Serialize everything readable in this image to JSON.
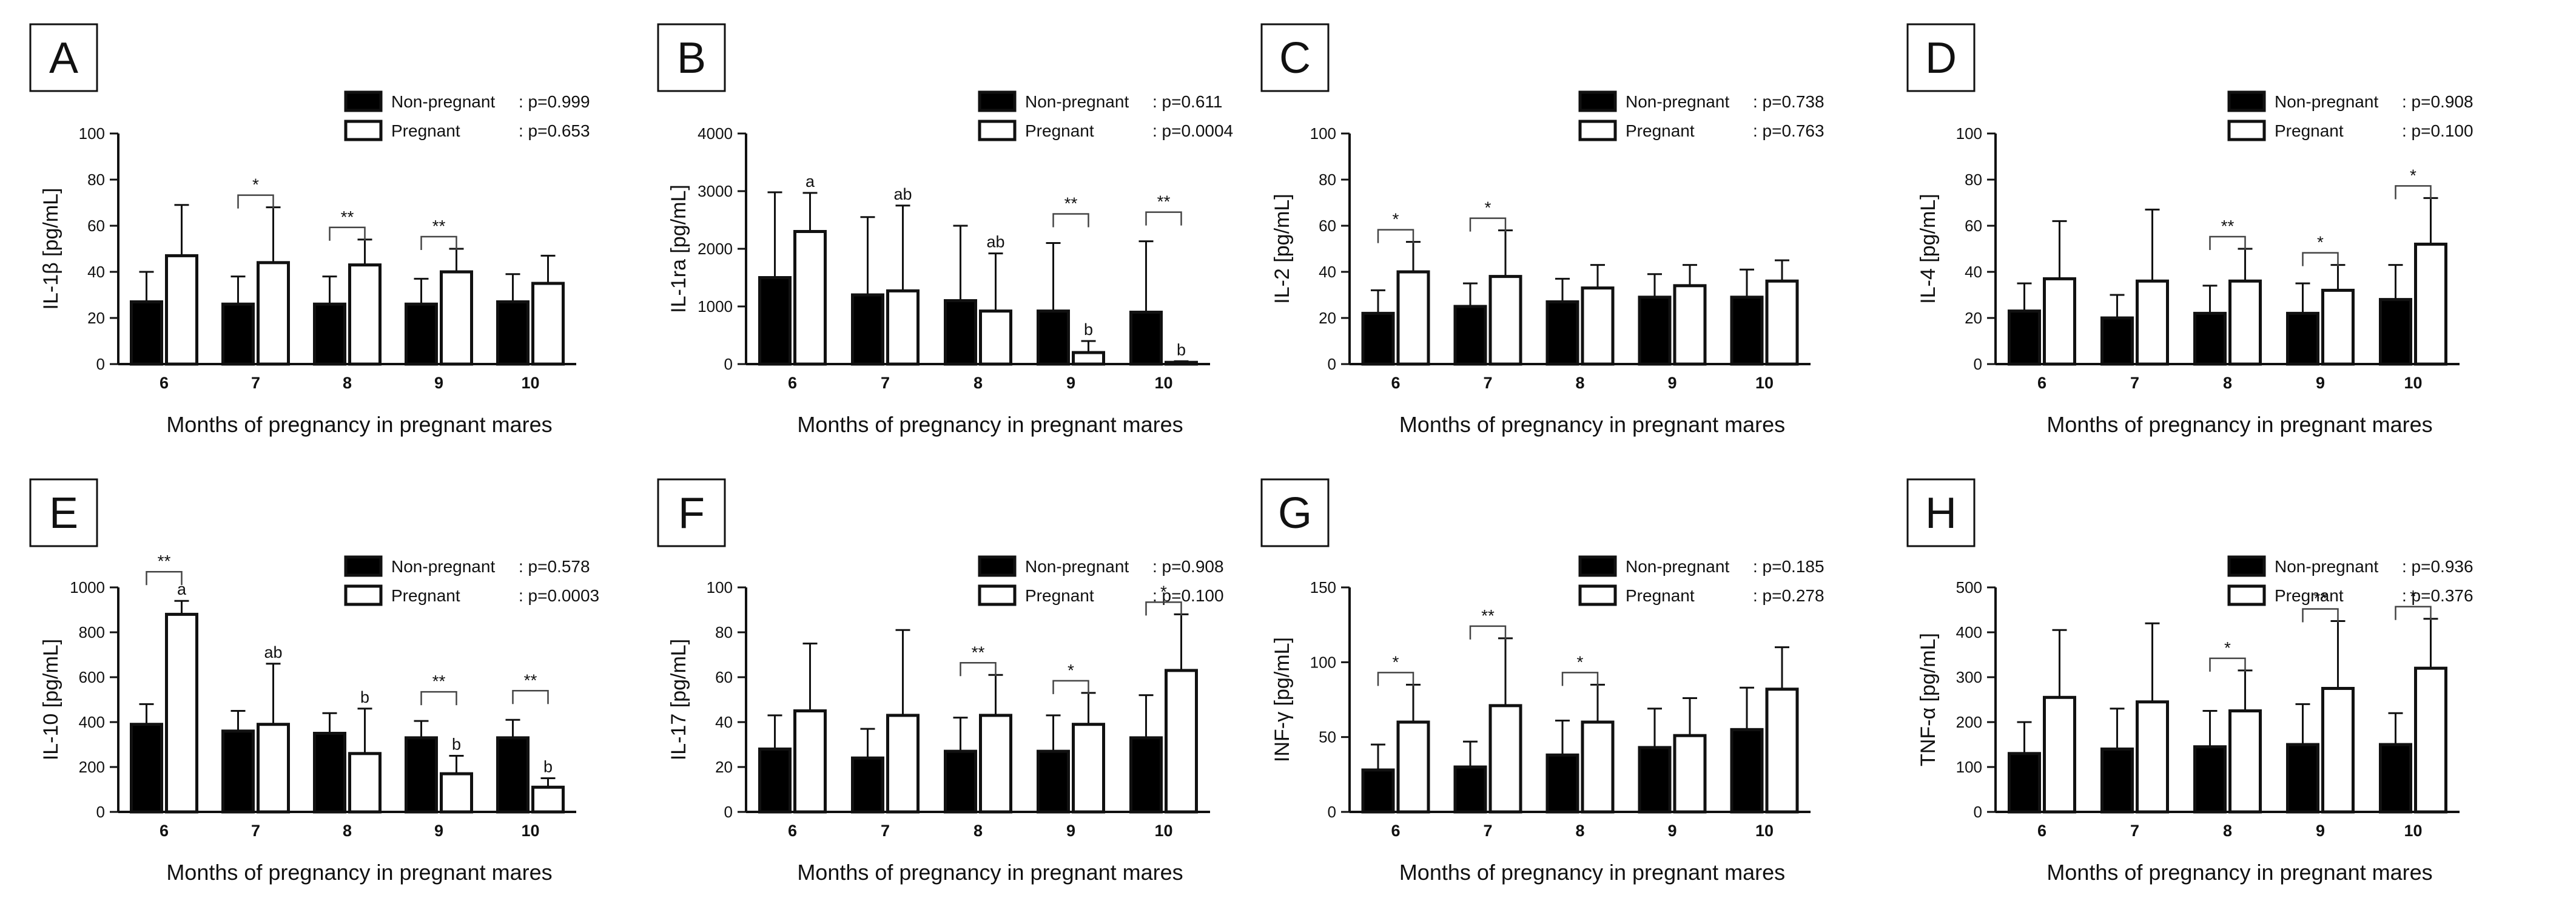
{
  "chart_data": [
    {
      "type": "bar",
      "panel": "A",
      "ylabel": "IL-1β [pg/mL]",
      "xlabel": "Months of pregnancy in pregnant mares",
      "categories": [
        "6",
        "7",
        "8",
        "9",
        "10"
      ],
      "ylim": [
        0,
        100
      ],
      "yticks": [
        "0",
        "20",
        "40",
        "60",
        "80",
        "100"
      ],
      "legend": [
        {
          "name": "Non-pregnant",
          "p": ": p=0.999"
        },
        {
          "name": "Pregnant",
          "p": ": p=0.653"
        }
      ],
      "series": [
        {
          "name": "Non-pregnant",
          "color": "#000000",
          "values": [
            27,
            26,
            26,
            26,
            27
          ],
          "err": [
            13,
            12,
            12,
            11,
            12
          ]
        },
        {
          "name": "Pregnant",
          "color": "#ffffff",
          "values": [
            47,
            44,
            43,
            40,
            35
          ],
          "err": [
            22,
            24,
            11,
            10,
            12
          ]
        }
      ],
      "letters": {
        "nonpregnant": [
          "",
          "",
          "",
          "",
          ""
        ],
        "pregnant": [
          "",
          "",
          "",
          "",
          ""
        ]
      },
      "significance": [
        "",
        "*",
        "**",
        "**",
        ""
      ]
    },
    {
      "type": "bar",
      "panel": "B",
      "ylabel": "IL-1ra [pg/mL]",
      "xlabel": "Months of pregnancy in pregnant mares",
      "categories": [
        "6",
        "7",
        "8",
        "9",
        "10"
      ],
      "ylim": [
        0,
        4000
      ],
      "yticks": [
        "0",
        "1000",
        "2000",
        "3000",
        "4000"
      ],
      "legend": [
        {
          "name": "Non-pregnant",
          "p": ": p=0.611"
        },
        {
          "name": "Pregnant",
          "p": ": p=0.0004"
        }
      ],
      "series": [
        {
          "name": "Non-pregnant",
          "color": "#000000",
          "values": [
            1500,
            1200,
            1100,
            920,
            900
          ],
          "err": [
            1480,
            1350,
            1300,
            1180,
            1230
          ]
        },
        {
          "name": "Pregnant",
          "color": "#ffffff",
          "values": [
            2300,
            1270,
            920,
            200,
            30
          ],
          "err": [
            670,
            1480,
            1000,
            200,
            20
          ]
        }
      ],
      "letters": {
        "nonpregnant": [
          "",
          "",
          "",
          "",
          ""
        ],
        "pregnant": [
          "a",
          "ab",
          "ab",
          "b",
          "b"
        ]
      },
      "significance": [
        "",
        "",
        "",
        "**",
        "**"
      ]
    },
    {
      "type": "bar",
      "panel": "C",
      "ylabel": "IL-2 [pg/mL]",
      "xlabel": "Months of pregnancy in pregnant mares",
      "categories": [
        "6",
        "7",
        "8",
        "9",
        "10"
      ],
      "ylim": [
        0,
        100
      ],
      "yticks": [
        "0",
        "20",
        "40",
        "60",
        "80",
        "100"
      ],
      "legend": [
        {
          "name": "Non-pregnant",
          "p": ": p=0.738"
        },
        {
          "name": "Pregnant",
          "p": ": p=0.763"
        }
      ],
      "series": [
        {
          "name": "Non-pregnant",
          "color": "#000000",
          "values": [
            22,
            25,
            27,
            29,
            29
          ],
          "err": [
            10,
            10,
            10,
            10,
            12
          ]
        },
        {
          "name": "Pregnant",
          "color": "#ffffff",
          "values": [
            40,
            38,
            33,
            34,
            36
          ],
          "err": [
            13,
            20,
            10,
            9,
            9
          ]
        }
      ],
      "letters": {
        "nonpregnant": [
          "",
          "",
          "",
          "",
          ""
        ],
        "pregnant": [
          "",
          "",
          "",
          "",
          ""
        ]
      },
      "significance": [
        "*",
        "*",
        "",
        "",
        ""
      ]
    },
    {
      "type": "bar",
      "panel": "D",
      "ylabel": "IL-4 [pg/mL]",
      "xlabel": "Months of pregnancy in pregnant mares",
      "categories": [
        "6",
        "7",
        "8",
        "9",
        "10"
      ],
      "ylim": [
        0,
        100
      ],
      "yticks": [
        "0",
        "20",
        "40",
        "60",
        "80",
        "100"
      ],
      "legend": [
        {
          "name": "Non-pregnant",
          "p": ": p=0.908"
        },
        {
          "name": "Pregnant",
          "p": ": p=0.100"
        }
      ],
      "series": [
        {
          "name": "Non-pregnant",
          "color": "#000000",
          "values": [
            23,
            20,
            22,
            22,
            28
          ],
          "err": [
            12,
            10,
            12,
            13,
            15
          ]
        },
        {
          "name": "Pregnant",
          "color": "#ffffff",
          "values": [
            37,
            36,
            36,
            32,
            52
          ],
          "err": [
            25,
            31,
            14,
            11,
            20
          ]
        }
      ],
      "letters": {
        "nonpregnant": [
          "",
          "",
          "",
          "",
          ""
        ],
        "pregnant": [
          "",
          "",
          "",
          "",
          ""
        ]
      },
      "significance": [
        "",
        "",
        "**",
        "*",
        "*"
      ]
    },
    {
      "type": "bar",
      "panel": "E",
      "ylabel": "IL-10 [pg/mL]",
      "xlabel": "Months of pregnancy in pregnant mares",
      "categories": [
        "6",
        "7",
        "8",
        "9",
        "10"
      ],
      "ylim": [
        0,
        1000
      ],
      "yticks": [
        "0",
        "200",
        "400",
        "600",
        "800",
        "1000"
      ],
      "legend": [
        {
          "name": "Non-pregnant",
          "p": ": p=0.578"
        },
        {
          "name": "Pregnant",
          "p": ": p=0.0003"
        }
      ],
      "series": [
        {
          "name": "Non-pregnant",
          "color": "#000000",
          "values": [
            390,
            360,
            350,
            330,
            330
          ],
          "err": [
            90,
            90,
            90,
            75,
            80
          ]
        },
        {
          "name": "Pregnant",
          "color": "#ffffff",
          "values": [
            880,
            390,
            260,
            170,
            110
          ],
          "err": [
            60,
            270,
            200,
            80,
            40
          ]
        }
      ],
      "letters": {
        "nonpregnant": [
          "",
          "",
          "",
          "",
          ""
        ],
        "pregnant": [
          "a",
          "ab",
          "b",
          "b",
          "b"
        ]
      },
      "significance": [
        "**",
        "",
        "",
        "**",
        "**"
      ]
    },
    {
      "type": "bar",
      "panel": "F",
      "ylabel": "IL-17 [pg/mL]",
      "xlabel": "Months of pregnancy in pregnant mares",
      "categories": [
        "6",
        "7",
        "8",
        "9",
        "10"
      ],
      "ylim": [
        0,
        100
      ],
      "yticks": [
        "0",
        "20",
        "40",
        "60",
        "80",
        "100"
      ],
      "legend": [
        {
          "name": "Non-pregnant",
          "p": ": p=0.908"
        },
        {
          "name": "Pregnant",
          "p": ": p=0.100"
        }
      ],
      "series": [
        {
          "name": "Non-pregnant",
          "color": "#000000",
          "values": [
            28,
            24,
            27,
            27,
            33
          ],
          "err": [
            15,
            13,
            15,
            16,
            19
          ]
        },
        {
          "name": "Pregnant",
          "color": "#ffffff",
          "values": [
            45,
            43,
            43,
            39,
            63
          ],
          "err": [
            30,
            38,
            18,
            14,
            25
          ]
        }
      ],
      "letters": {
        "nonpregnant": [
          "",
          "",
          "",
          "",
          ""
        ],
        "pregnant": [
          "",
          "",
          "",
          "",
          ""
        ]
      },
      "significance": [
        "",
        "",
        "**",
        "*",
        "*"
      ]
    },
    {
      "type": "bar",
      "panel": "G",
      "ylabel": "INF-γ [pg/mL]",
      "xlabel": "Months of pregnancy in pregnant mares",
      "categories": [
        "6",
        "7",
        "8",
        "9",
        "10"
      ],
      "ylim": [
        0,
        150
      ],
      "yticks": [
        "0",
        "50",
        "100",
        "150"
      ],
      "legend": [
        {
          "name": "Non-pregnant",
          "p": ": p=0.185"
        },
        {
          "name": "Pregnant",
          "p": ": p=0.278"
        }
      ],
      "series": [
        {
          "name": "Non-pregnant",
          "color": "#000000",
          "values": [
            28,
            30,
            38,
            43,
            55
          ],
          "err": [
            17,
            17,
            23,
            26,
            28
          ]
        },
        {
          "name": "Pregnant",
          "color": "#ffffff",
          "values": [
            60,
            71,
            60,
            51,
            82
          ],
          "err": [
            25,
            45,
            25,
            25,
            28
          ]
        }
      ],
      "letters": {
        "nonpregnant": [
          "",
          "",
          "",
          "",
          ""
        ],
        "pregnant": [
          "",
          "",
          "",
          "",
          ""
        ]
      },
      "significance": [
        "*",
        "**",
        "*",
        "",
        ""
      ]
    },
    {
      "type": "bar",
      "panel": "H",
      "ylabel": "TNF-α [pg/mL]",
      "xlabel": "Months of pregnancy in pregnant mares",
      "categories": [
        "6",
        "7",
        "8",
        "9",
        "10"
      ],
      "ylim": [
        0,
        500
      ],
      "yticks": [
        "0",
        "100",
        "200",
        "300",
        "400",
        "500"
      ],
      "legend": [
        {
          "name": "Non-pregnant",
          "p": ": p=0.936"
        },
        {
          "name": "Pregnant",
          "p": ": p=0.376"
        }
      ],
      "series": [
        {
          "name": "Non-pregnant",
          "color": "#000000",
          "values": [
            130,
            140,
            145,
            150,
            150
          ],
          "err": [
            70,
            90,
            80,
            90,
            70
          ]
        },
        {
          "name": "Pregnant",
          "color": "#ffffff",
          "values": [
            255,
            245,
            225,
            275,
            320
          ],
          "err": [
            150,
            175,
            90,
            150,
            110
          ]
        }
      ],
      "letters": {
        "nonpregnant": [
          "",
          "",
          "",
          "",
          ""
        ],
        "pregnant": [
          "",
          "",
          "",
          "",
          ""
        ]
      },
      "significance": [
        "",
        "",
        "*",
        "**",
        "*"
      ]
    }
  ]
}
